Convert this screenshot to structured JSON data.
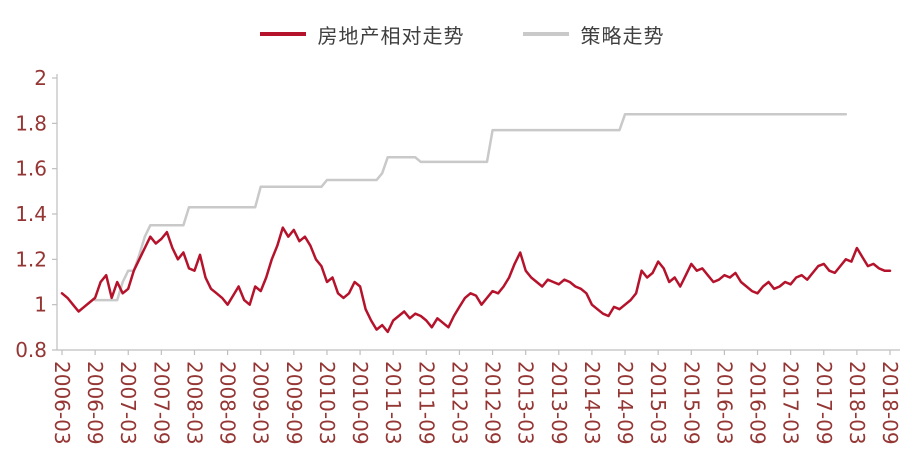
{
  "chart_data": {
    "type": "line",
    "title": "",
    "grid": false,
    "legend_position": "top",
    "axis_color": "#bfbfbf",
    "tick_label_color": "#943634",
    "ylim": [
      0.8,
      2
    ],
    "y_ticks": [
      0.8,
      1,
      1.2,
      1.4,
      1.6,
      1.8,
      2
    ],
    "y_tick_labels": [
      "0.8",
      "1",
      "1.2",
      "1.4",
      "1.6",
      "1.8",
      "2"
    ],
    "x_start": "2006-03",
    "x_end": "2018-09",
    "x_tick_labels": [
      "2006-03",
      "2006-09",
      "2007-03",
      "2007-09",
      "2008-03",
      "2008-09",
      "2009-03",
      "2009-09",
      "2010-03",
      "2010-09",
      "2011-03",
      "2011-09",
      "2012-03",
      "2012-09",
      "2013-03",
      "2013-09",
      "2014-03",
      "2014-09",
      "2015-03",
      "2015-09",
      "2016-03",
      "2016-09",
      "2017-03",
      "2017-09",
      "2018-03",
      "2018-09"
    ],
    "series": [
      {
        "name": "房地产相对走势",
        "color": "#b5122b",
        "start": "2006-03",
        "freq": "monthly",
        "values": [
          1.05,
          1.03,
          1.0,
          0.97,
          0.99,
          1.01,
          1.03,
          1.1,
          1.13,
          1.03,
          1.1,
          1.05,
          1.07,
          1.15,
          1.2,
          1.25,
          1.3,
          1.27,
          1.29,
          1.32,
          1.25,
          1.2,
          1.23,
          1.16,
          1.15,
          1.22,
          1.12,
          1.07,
          1.05,
          1.03,
          1.0,
          1.04,
          1.08,
          1.02,
          1.0,
          1.08,
          1.06,
          1.12,
          1.2,
          1.26,
          1.34,
          1.3,
          1.33,
          1.28,
          1.3,
          1.26,
          1.2,
          1.17,
          1.1,
          1.12,
          1.05,
          1.03,
          1.05,
          1.1,
          1.08,
          0.98,
          0.93,
          0.89,
          0.91,
          0.88,
          0.93,
          0.95,
          0.97,
          0.94,
          0.96,
          0.95,
          0.93,
          0.9,
          0.94,
          0.92,
          0.9,
          0.95,
          0.99,
          1.03,
          1.05,
          1.04,
          1.0,
          1.03,
          1.06,
          1.05,
          1.08,
          1.12,
          1.18,
          1.23,
          1.15,
          1.12,
          1.1,
          1.08,
          1.11,
          1.1,
          1.09,
          1.11,
          1.1,
          1.08,
          1.07,
          1.05,
          1.0,
          0.98,
          0.96,
          0.95,
          0.99,
          0.98,
          1.0,
          1.02,
          1.05,
          1.15,
          1.12,
          1.14,
          1.19,
          1.16,
          1.1,
          1.12,
          1.08,
          1.13,
          1.18,
          1.15,
          1.16,
          1.13,
          1.1,
          1.11,
          1.13,
          1.12,
          1.14,
          1.1,
          1.08,
          1.06,
          1.05,
          1.08,
          1.1,
          1.07,
          1.08,
          1.1,
          1.09,
          1.12,
          1.13,
          1.11,
          1.14,
          1.17,
          1.18,
          1.15,
          1.14,
          1.17,
          1.2,
          1.19,
          1.25,
          1.21,
          1.17,
          1.18,
          1.16,
          1.15,
          1.15
        ]
      },
      {
        "name": "策略走势",
        "color": "#c9c9c9",
        "start": "2006-09",
        "freq": "monthly",
        "values": [
          1.02,
          1.02,
          1.02,
          1.02,
          1.02,
          1.1,
          1.15,
          1.15,
          1.22,
          1.3,
          1.35,
          1.35,
          1.35,
          1.35,
          1.35,
          1.35,
          1.35,
          1.43,
          1.43,
          1.43,
          1.43,
          1.43,
          1.43,
          1.43,
          1.43,
          1.43,
          1.43,
          1.43,
          1.43,
          1.43,
          1.52,
          1.52,
          1.52,
          1.52,
          1.52,
          1.52,
          1.52,
          1.52,
          1.52,
          1.52,
          1.52,
          1.52,
          1.55,
          1.55,
          1.55,
          1.55,
          1.55,
          1.55,
          1.55,
          1.55,
          1.55,
          1.55,
          1.58,
          1.65,
          1.65,
          1.65,
          1.65,
          1.65,
          1.65,
          1.63,
          1.63,
          1.63,
          1.63,
          1.63,
          1.63,
          1.63,
          1.63,
          1.63,
          1.63,
          1.63,
          1.63,
          1.63,
          1.77,
          1.77,
          1.77,
          1.77,
          1.77,
          1.77,
          1.77,
          1.77,
          1.77,
          1.77,
          1.77,
          1.77,
          1.77,
          1.77,
          1.77,
          1.77,
          1.77,
          1.77,
          1.77,
          1.77,
          1.77,
          1.77,
          1.77,
          1.77,
          1.84,
          1.84,
          1.84,
          1.84,
          1.84,
          1.84,
          1.84,
          1.84,
          1.84,
          1.84,
          1.84,
          1.84,
          1.84,
          1.84,
          1.84,
          1.84,
          1.84,
          1.84,
          1.84,
          1.84,
          1.84,
          1.84,
          1.84,
          1.84,
          1.84,
          1.84,
          1.84,
          1.84,
          1.84,
          1.84,
          1.84,
          1.84,
          1.84,
          1.84,
          1.84,
          1.84,
          1.84,
          1.84,
          1.84,
          1.84,
          1.84
        ]
      }
    ]
  }
}
